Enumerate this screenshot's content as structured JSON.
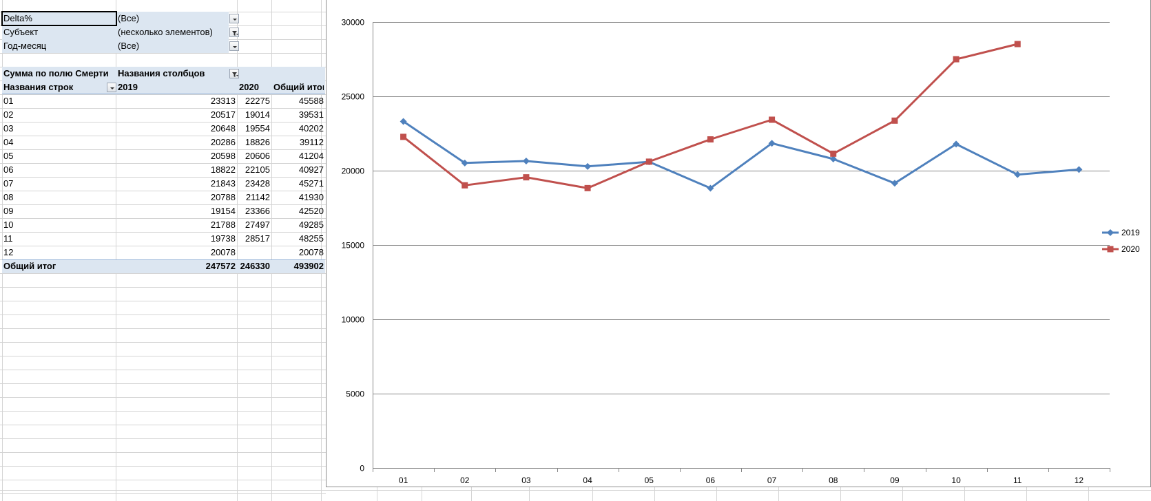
{
  "filters": [
    {
      "field": "Delta%",
      "value": "(Все)",
      "filter_applied": false
    },
    {
      "field": "Субъект",
      "value": "(несколько элементов)",
      "filter_applied": true
    },
    {
      "field": "Год-месяц",
      "value": "(Все)",
      "filter_applied": false
    }
  ],
  "pivot": {
    "values_label": "Сумма по полю Смерти",
    "column_labels": "Названия столбцов",
    "row_labels": "Названия строк",
    "col_headers": [
      "2019",
      "2020",
      "Общий итог"
    ],
    "rows": [
      {
        "label": "01",
        "v2019": "23313",
        "v2020": "22275",
        "total": "45588"
      },
      {
        "label": "02",
        "v2019": "20517",
        "v2020": "19014",
        "total": "39531"
      },
      {
        "label": "03",
        "v2019": "20648",
        "v2020": "19554",
        "total": "40202"
      },
      {
        "label": "04",
        "v2019": "20286",
        "v2020": "18826",
        "total": "39112"
      },
      {
        "label": "05",
        "v2019": "20598",
        "v2020": "20606",
        "total": "41204"
      },
      {
        "label": "06",
        "v2019": "18822",
        "v2020": "22105",
        "total": "40927"
      },
      {
        "label": "07",
        "v2019": "21843",
        "v2020": "23428",
        "total": "45271"
      },
      {
        "label": "08",
        "v2019": "20788",
        "v2020": "21142",
        "total": "41930"
      },
      {
        "label": "09",
        "v2019": "19154",
        "v2020": "23366",
        "total": "42520"
      },
      {
        "label": "10",
        "v2019": "21788",
        "v2020": "27497",
        "total": "49285"
      },
      {
        "label": "11",
        "v2019": "19738",
        "v2020": "28517",
        "total": "48255"
      },
      {
        "label": "12",
        "v2019": "20078",
        "v2020": "",
        "total": "20078"
      }
    ],
    "grand_total": {
      "label": "Общий итог",
      "v2019": "247572",
      "v2020": "246330",
      "total": "493902"
    }
  },
  "colors": {
    "series_2019": "#4f81bd",
    "series_2020": "#c0504d",
    "pivot_header": "#dce6f1",
    "gridline": "#d4d4d4"
  },
  "chart_data": {
    "type": "line",
    "categories": [
      "01",
      "02",
      "03",
      "04",
      "05",
      "06",
      "07",
      "08",
      "09",
      "10",
      "11",
      "12"
    ],
    "series": [
      {
        "name": "2019",
        "values": [
          23313,
          20517,
          20648,
          20286,
          20598,
          18822,
          21843,
          20788,
          19154,
          21788,
          19738,
          20078
        ],
        "marker": "diamond"
      },
      {
        "name": "2020",
        "values": [
          22275,
          19014,
          19554,
          18826,
          20606,
          22105,
          23428,
          21142,
          23366,
          27497,
          28517,
          null
        ],
        "marker": "square"
      }
    ],
    "yticks": [
      0,
      5000,
      10000,
      15000,
      20000,
      25000,
      30000
    ],
    "ylim": [
      0,
      30000
    ],
    "grid": true,
    "legend": "right"
  }
}
